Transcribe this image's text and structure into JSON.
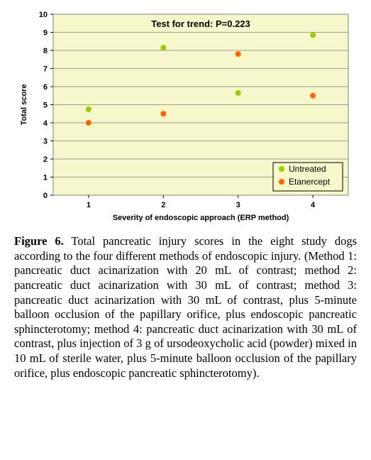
{
  "chart": {
    "type": "scatter",
    "background_color": "#f7f7cc",
    "plot_border_color": "#808080",
    "grid_color": "#808080",
    "page_bg": "#ffffff",
    "y_axis": {
      "label": "Total score",
      "min": 0,
      "max": 10,
      "step": 1,
      "label_fontsize": 11,
      "label_fontweight": "bold",
      "tick_fontsize": 11,
      "tick_fontweight": "bold"
    },
    "x_axis": {
      "label": "Severity of endoscopic approach (ERP method)",
      "ticks": [
        1,
        2,
        3,
        4
      ],
      "label_fontsize": 11,
      "label_fontweight": "bold",
      "tick_fontsize": 11,
      "tick_fontweight": "bold"
    },
    "annotation": {
      "text": "Test for trend: P=0.223",
      "fontsize": 13,
      "fontweight": "bold",
      "color": "#000000"
    },
    "series": [
      {
        "name": "Untreated",
        "color": "#99cc00",
        "marker": "circle",
        "data": [
          {
            "x": 1,
            "y": 4.75
          },
          {
            "x": 2,
            "y": 8.15
          },
          {
            "x": 3,
            "y": 5.65
          },
          {
            "x": 4,
            "y": 8.85
          }
        ]
      },
      {
        "name": "Etanercept",
        "color": "#ff6600",
        "marker": "circle",
        "data": [
          {
            "x": 1,
            "y": 4.0
          },
          {
            "x": 2,
            "y": 4.5
          },
          {
            "x": 3,
            "y": 7.8
          },
          {
            "x": 4,
            "y": 5.5
          }
        ]
      }
    ],
    "legend": {
      "border_color": "#000000",
      "bg_color": "#f7f7cc",
      "fontsize": 12,
      "position": "bottom-right"
    },
    "marker_radius": 4
  },
  "caption": {
    "label": "Figure 6.",
    "text": "Total pancreatic injury scores in the eight study dogs according to the four different methods of endoscopic injury. (Method 1: pancreatic duct acinarization with 20 mL of contrast; method 2: pancreatic duct acinarization with 30 mL of contrast; method 3: pancreatic duct acinarization with 30 mL of contrast, plus 5-minute balloon occlusion of the papillary orifice, plus endoscopic pancreatic sphincterotomy; method 4: pancreatic duct acinarization with 30 mL of contrast, plus injection of 3 g of ursodeoxycholic acid (powder) mixed in 10 mL of sterile water, plus 5-minute balloon occlusion of the papillary orifice, plus endoscopic pancreatic sphincterotomy)."
  }
}
